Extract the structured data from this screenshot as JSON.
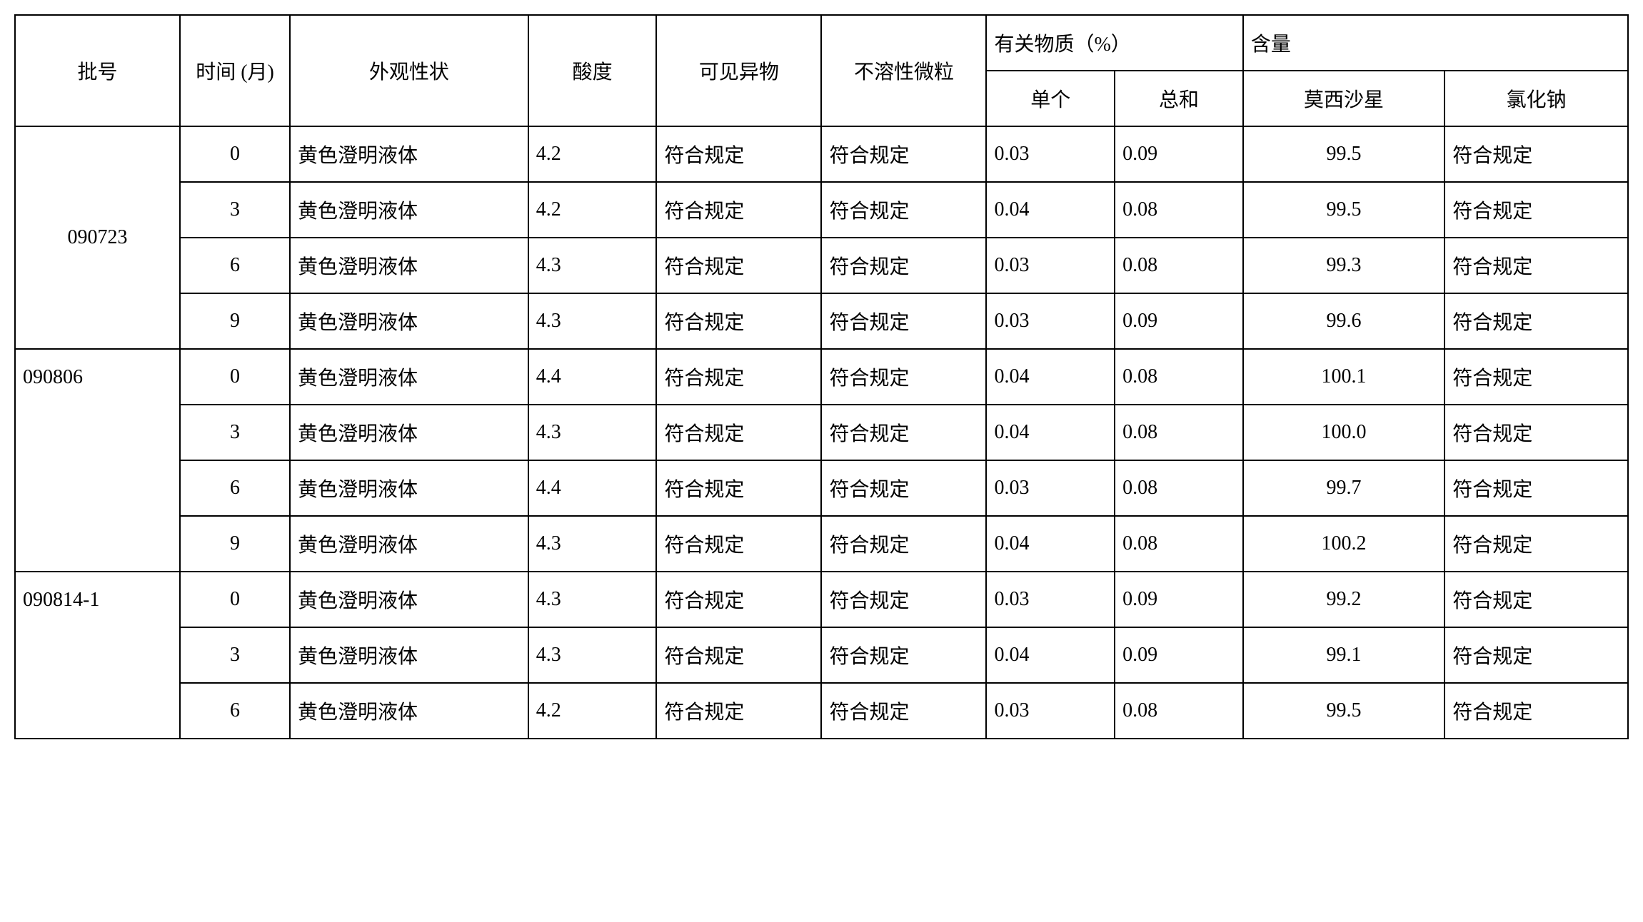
{
  "table": {
    "headers": {
      "batch": "批号",
      "time": "时间 (月)",
      "appearance": "外观性状",
      "acidity": "酸度",
      "visible_matter": "可见异物",
      "insoluble_particles": "不溶性微粒",
      "related_substances": "有关物质（%）",
      "content": "含量",
      "single": "单个",
      "total": "总和",
      "moxifloxacin": "莫西沙星",
      "nacl": "氯化钠"
    },
    "batches": [
      {
        "batch_no": "090723",
        "rows": [
          {
            "time": "0",
            "appearance": "黄色澄明液体",
            "acidity": "4.2",
            "visible": "符合规定",
            "insoluble": "符合规定",
            "single": "0.03",
            "total": "0.09",
            "moxi": "99.5",
            "nacl": "符合规定"
          },
          {
            "time": "3",
            "appearance": "黄色澄明液体",
            "acidity": "4.2",
            "visible": "符合规定",
            "insoluble": "符合规定",
            "single": "0.04",
            "total": "0.08",
            "moxi": "99.5",
            "nacl": "符合规定"
          },
          {
            "time": "6",
            "appearance": "黄色澄明液体",
            "acidity": "4.3",
            "visible": "符合规定",
            "insoluble": "符合规定",
            "single": "0.03",
            "total": "0.08",
            "moxi": "99.3",
            "nacl": "符合规定"
          },
          {
            "time": "9",
            "appearance": "黄色澄明液体",
            "acidity": "4.3",
            "visible": "符合规定",
            "insoluble": "符合规定",
            "single": "0.03",
            "total": "0.09",
            "moxi": "99.6",
            "nacl": "符合规定"
          }
        ]
      },
      {
        "batch_no": "090806",
        "rows": [
          {
            "time": "0",
            "appearance": "黄色澄明液体",
            "acidity": "4.4",
            "visible": "符合规定",
            "insoluble": "符合规定",
            "single": "0.04",
            "total": "0.08",
            "moxi": "100.1",
            "nacl": "符合规定"
          },
          {
            "time": "3",
            "appearance": "黄色澄明液体",
            "acidity": "4.3",
            "visible": "符合规定",
            "insoluble": "符合规定",
            "single": "0.04",
            "total": "0.08",
            "moxi": "100.0",
            "nacl": "符合规定"
          },
          {
            "time": "6",
            "appearance": "黄色澄明液体",
            "acidity": "4.4",
            "visible": "符合规定",
            "insoluble": "符合规定",
            "single": "0.03",
            "total": "0.08",
            "moxi": "99.7",
            "nacl": "符合规定"
          },
          {
            "time": "9",
            "appearance": "黄色澄明液体",
            "acidity": "4.3",
            "visible": "符合规定",
            "insoluble": "符合规定",
            "single": "0.04",
            "total": "0.08",
            "moxi": "100.2",
            "nacl": "符合规定"
          }
        ]
      },
      {
        "batch_no": "090814-1",
        "rows": [
          {
            "time": "0",
            "appearance": "黄色澄明液体",
            "acidity": "4.3",
            "visible": "符合规定",
            "insoluble": "符合规定",
            "single": "0.03",
            "total": "0.09",
            "moxi": "99.2",
            "nacl": "符合规定"
          },
          {
            "time": "3",
            "appearance": "黄色澄明液体",
            "acidity": "4.3",
            "visible": "符合规定",
            "insoluble": "符合规定",
            "single": "0.04",
            "total": "0.09",
            "moxi": "99.1",
            "nacl": "符合规定"
          },
          {
            "time": "6",
            "appearance": "黄色澄明液体",
            "acidity": "4.2",
            "visible": "符合规定",
            "insoluble": "符合规定",
            "single": "0.03",
            "total": "0.08",
            "moxi": "99.5",
            "nacl": "符合规定"
          }
        ]
      }
    ],
    "styling": {
      "border_color": "#000000",
      "border_width": 2,
      "background_color": "#ffffff",
      "font_family": "SimSun",
      "font_size": 28,
      "cell_padding": "18px 10px",
      "text_color": "#000000"
    }
  }
}
